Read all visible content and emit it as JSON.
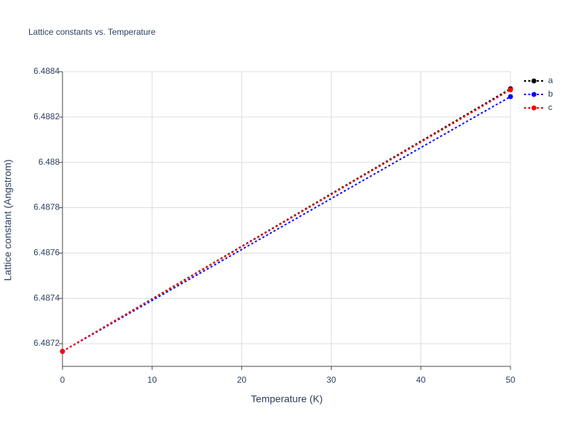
{
  "chart_data": {
    "type": "line",
    "title": "Lattice constants vs. Temperature",
    "x_label": "Temperature (K)",
    "y_label": "Lattice constant (Angstrom)",
    "x": [
      0,
      50
    ],
    "series": [
      {
        "name": "a",
        "color": "#000000",
        "values": [
          6.487166,
          6.488325
        ]
      },
      {
        "name": "b",
        "color": "#0000ff",
        "values": [
          6.487166,
          6.48829
        ]
      },
      {
        "name": "c",
        "color": "#ff0000",
        "values": [
          6.487166,
          6.48832
        ]
      }
    ],
    "xlim": [
      0,
      50
    ],
    "xticks": [
      0,
      10,
      20,
      30,
      40,
      50
    ],
    "ylim": [
      6.4871,
      6.4884
    ],
    "yticks": [
      6.4872,
      6.4874,
      6.4876,
      6.4878,
      6.488,
      6.4882,
      6.4884
    ],
    "grid": true,
    "legend_position": "top-right",
    "line_dash": "dot"
  }
}
